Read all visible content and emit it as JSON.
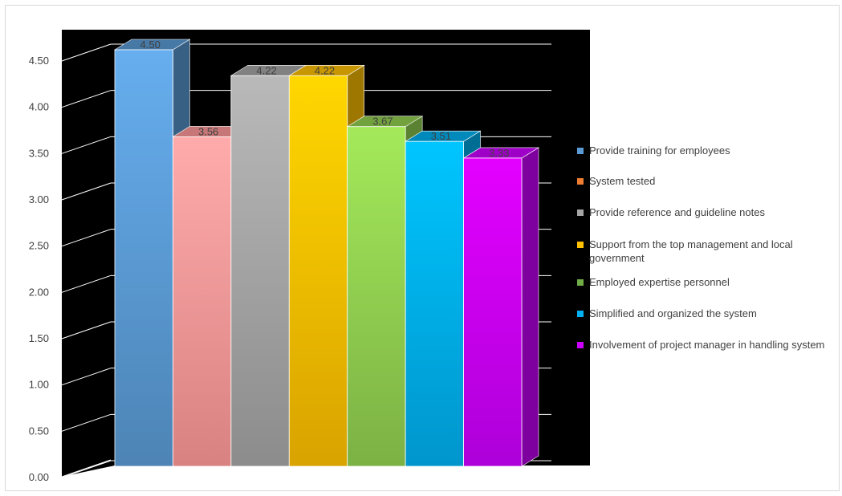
{
  "chart_data": {
    "type": "bar",
    "title": "",
    "xlabel": "",
    "ylabel": "",
    "ylim": [
      0,
      4.5
    ],
    "yticks": [
      "0.00",
      "0.50",
      "1.00",
      "1.50",
      "2.00",
      "2.50",
      "3.00",
      "3.50",
      "4.00",
      "4.50"
    ],
    "grid": true,
    "legend_position": "right",
    "style": "3d-column",
    "series": [
      {
        "name": "Provide training for employees",
        "value": 4.5,
        "label": "4.50",
        "color": "#5b9bd5"
      },
      {
        "name": "System tested",
        "value": 3.56,
        "label": "3.56",
        "color": "#ff9999"
      },
      {
        "name": "Provide reference and guideline notes",
        "value": 4.22,
        "label": "4.22",
        "color": "#a5a5a5"
      },
      {
        "name": "Support from the top management and local government",
        "value": 4.22,
        "label": "4.22",
        "color": "#ffc000"
      },
      {
        "name": "Employed expertise personnel",
        "value": 3.67,
        "label": "3.67",
        "color": "#92d050"
      },
      {
        "name": "Simplified and organized the system",
        "value": 3.51,
        "label": "3.51",
        "color": "#00b0f0"
      },
      {
        "name": "Involvement of project manager in handling system",
        "value": 3.33,
        "label": "3.33",
        "color": "#cc00ff"
      }
    ],
    "legend_swatch_colors": [
      "#5b9bd5",
      "#ed7d31",
      "#a5a5a5",
      "#ffc000",
      "#70ad47",
      "#00b0f0",
      "#cc00ff"
    ],
    "plot_background": "#000000",
    "gridline_color": "#ffffff"
  }
}
